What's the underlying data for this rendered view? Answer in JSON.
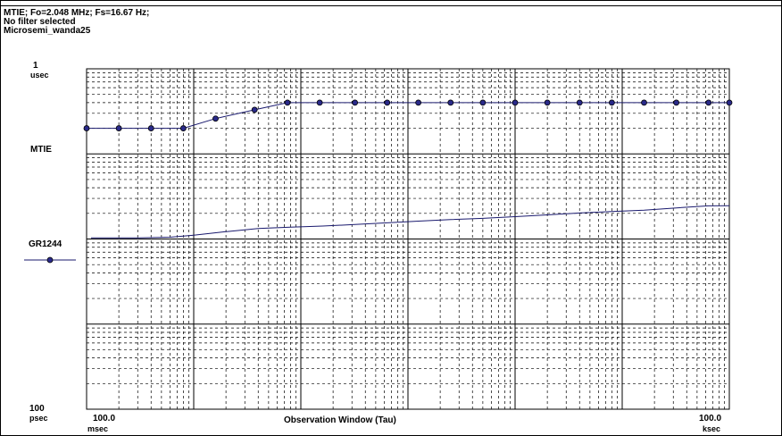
{
  "header": {
    "line1": "MTIE; Fo=2.048 MHz; Fs=16.67 Hz;",
    "line2": "No filter selected",
    "line3": "Microsemi_wanda25"
  },
  "y_axis": {
    "top_value": "1",
    "top_unit": "usec",
    "bottom_value": "100",
    "bottom_unit": "psec",
    "series_label": "MTIE"
  },
  "x_axis": {
    "left_value": "100.0",
    "left_unit": "msec",
    "right_value": "100.0",
    "right_unit": "ksec",
    "title": "Observation Window (Tau)"
  },
  "legend": {
    "label": "GR1244"
  },
  "colors": {
    "series": "#1a1a6e",
    "marker": "#2a2a8a",
    "grid": "#000000"
  },
  "chart_data": {
    "type": "line",
    "title": "",
    "xlabel": "Observation Window (Tau)",
    "ylabel": "MTIE",
    "x_scale": "log",
    "y_scale": "log",
    "xlim_seconds": [
      0.1,
      100000
    ],
    "ylim_seconds": [
      1e-10,
      1e-06
    ],
    "grid": true,
    "legend_position": "left",
    "series": [
      {
        "name": "GR1244",
        "marker": "circle",
        "x_seconds": [
          0.1,
          0.2,
          0.4,
          0.8,
          1.6,
          3.7,
          7.5,
          15,
          32,
          64,
          125,
          250,
          500,
          1000,
          2000,
          4000,
          8000,
          16000,
          32000,
          64000,
          100000
        ],
        "y_seconds": [
          2e-07,
          2e-07,
          2e-07,
          2e-07,
          2.6e-07,
          3.3e-07,
          4e-07,
          4e-07,
          4e-07,
          4e-07,
          4e-07,
          4e-07,
          4e-07,
          4e-07,
          4e-07,
          4e-07,
          4e-07,
          4e-07,
          4e-07,
          4e-07,
          4e-07
        ]
      },
      {
        "name": "",
        "marker": "none",
        "x_seconds": [
          0.11,
          0.3,
          0.6,
          1.0,
          2.0,
          4.0,
          8.0,
          16,
          32,
          64,
          125,
          250,
          500,
          1000,
          2000,
          4000,
          8000,
          16000,
          32000,
          64000,
          100000
        ],
        "y_seconds": [
          1.03e-08,
          1.03e-08,
          1.05e-08,
          1.11e-08,
          1.22e-08,
          1.33e-08,
          1.38e-08,
          1.42e-08,
          1.48e-08,
          1.55e-08,
          1.62e-08,
          1.69e-08,
          1.75e-08,
          1.83e-08,
          1.92e-08,
          2.02e-08,
          2.1e-08,
          2.18e-08,
          2.32e-08,
          2.45e-08,
          2.46e-08
        ]
      }
    ]
  }
}
